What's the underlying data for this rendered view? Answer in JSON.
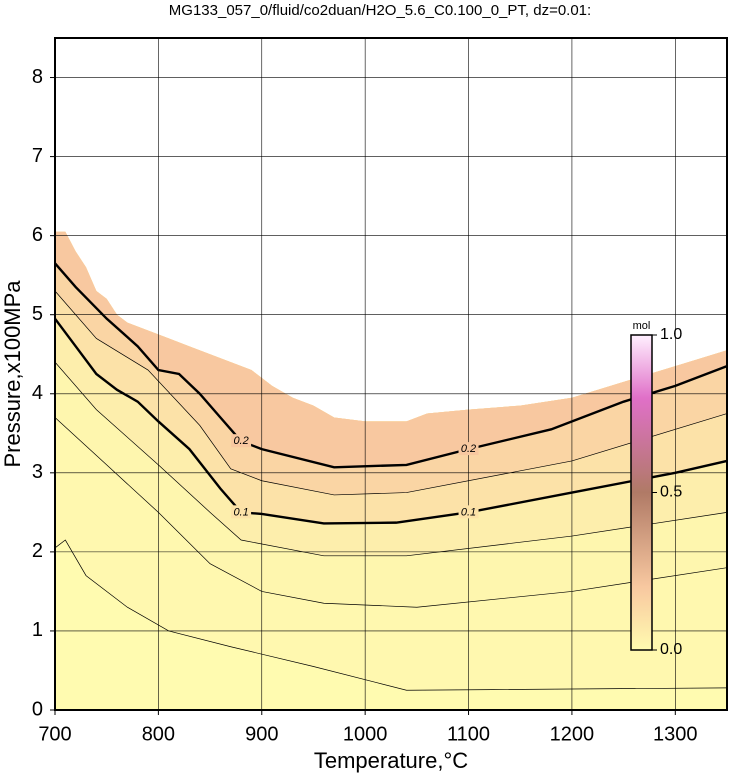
{
  "chart_data": {
    "type": "contour",
    "title": "MG133_057_0/fluid/co2duan/H2O_5.6_C0.100_0_PT, dz=0.01:",
    "xlabel": "Temperature,°C",
    "ylabel": "Pressure,x100MPa",
    "xlim": [
      700,
      1350
    ],
    "ylim": [
      0,
      8.5
    ],
    "xticks": [
      700,
      800,
      900,
      1000,
      1100,
      1200,
      1300
    ],
    "yticks": [
      0,
      1,
      2,
      3,
      4,
      5,
      6,
      7,
      8
    ],
    "grid": true,
    "boundary": {
      "x": [
        700,
        710,
        720,
        730,
        740,
        750,
        760,
        770,
        790,
        810,
        830,
        850,
        870,
        890,
        910,
        930,
        950,
        970,
        1000,
        1040,
        1060,
        1100,
        1150,
        1200,
        1250,
        1300,
        1350
      ],
      "y": [
        6.05,
        6.05,
        5.8,
        5.6,
        5.3,
        5.2,
        5.0,
        4.9,
        4.8,
        4.7,
        4.6,
        4.5,
        4.4,
        4.3,
        4.1,
        3.95,
        3.85,
        3.7,
        3.65,
        3.65,
        3.75,
        3.8,
        3.85,
        3.95,
        4.15,
        4.35,
        4.55
      ]
    },
    "contours": [
      {
        "level": 0.01,
        "labeled": false,
        "x": [
          700,
          710,
          730,
          770,
          810,
          870,
          950,
          1010,
          1040,
          1350
        ],
        "y": [
          2.05,
          2.15,
          1.7,
          1.3,
          1.0,
          0.8,
          0.55,
          0.35,
          0.25,
          0.28
        ]
      },
      {
        "level": 0.02,
        "labeled": false,
        "x": [
          700,
          750,
          800,
          850,
          900,
          960,
          1050,
          1200,
          1350
        ],
        "y": [
          3.7,
          3.1,
          2.5,
          1.85,
          1.5,
          1.35,
          1.3,
          1.5,
          1.8
        ]
      },
      {
        "level": 0.05,
        "labeled": false,
        "x": [
          700,
          740,
          800,
          850,
          880,
          960,
          1040,
          1200,
          1350
        ],
        "y": [
          4.4,
          3.8,
          3.1,
          2.5,
          2.15,
          1.95,
          1.95,
          2.2,
          2.5
        ]
      },
      {
        "level": 0.1,
        "labeled": true,
        "x": [
          700,
          720,
          740,
          760,
          780,
          800,
          830,
          860,
          880,
          900,
          960,
          1030,
          1100,
          1200,
          1300,
          1350
        ],
        "y": [
          4.95,
          4.6,
          4.25,
          4.05,
          3.9,
          3.65,
          3.3,
          2.8,
          2.5,
          2.48,
          2.36,
          2.37,
          2.5,
          2.75,
          3.0,
          3.15
        ]
      },
      {
        "level": 0.15,
        "labeled": false,
        "x": [
          700,
          740,
          790,
          840,
          870,
          900,
          970,
          1040,
          1200,
          1350
        ],
        "y": [
          5.3,
          4.7,
          4.3,
          3.6,
          3.05,
          2.9,
          2.72,
          2.75,
          3.15,
          3.75
        ]
      },
      {
        "level": 0.2,
        "labeled": true,
        "x": [
          700,
          720,
          750,
          780,
          800,
          820,
          840,
          860,
          880,
          900,
          970,
          1040,
          1100,
          1180,
          1250,
          1300,
          1350
        ],
        "y": [
          5.65,
          5.35,
          4.95,
          4.6,
          4.3,
          4.25,
          4.0,
          3.7,
          3.4,
          3.3,
          3.07,
          3.1,
          3.3,
          3.55,
          3.9,
          4.1,
          4.35
        ]
      }
    ],
    "colorbar": {
      "label": "mol",
      "lim": [
        0,
        1
      ],
      "ticks": [
        {
          "value": 0,
          "label": "0.0"
        },
        0.5,
        {
          "value": 1,
          "label": "1.0"
        }
      ],
      "colors": [
        [
          0,
          "#fffbb0"
        ],
        [
          0.2,
          "#f8c8a0"
        ],
        [
          0.5,
          "#b07a66"
        ],
        [
          0.8,
          "#e070c8"
        ],
        [
          1,
          "#fff0ff"
        ]
      ]
    }
  }
}
